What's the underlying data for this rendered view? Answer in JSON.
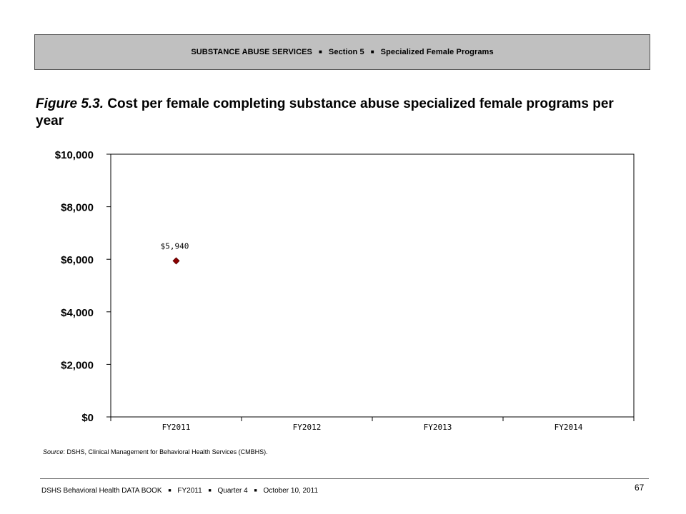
{
  "header": {
    "segment_1": "SUBSTANCE ABUSE SERVICES",
    "segment_2": "Section 5",
    "segment_3": "Specialized Female Programs",
    "separator": "■"
  },
  "figure": {
    "label": "Figure 5.3.",
    "title": "Cost per female completing substance abuse specialized female programs per year"
  },
  "chart_data": {
    "type": "scatter",
    "title": "",
    "xlabel": "",
    "ylabel": "",
    "categories": [
      "FY2011",
      "FY2012",
      "FY2013",
      "FY2014"
    ],
    "series": [
      {
        "values": [
          5940,
          null,
          null,
          null
        ],
        "data_labels": [
          "$5,940",
          "",
          "",
          ""
        ],
        "color": "#8b0000",
        "marker": "diamond"
      }
    ],
    "ylim": [
      0,
      10000
    ],
    "y_ticks": [
      0,
      2000,
      4000,
      6000,
      8000,
      10000
    ],
    "y_tick_labels": [
      "$0",
      "$2,000",
      "$4,000",
      "$6,000",
      "$8,000",
      "$10,000"
    ],
    "grid": false,
    "legend": "none"
  },
  "source": {
    "label": "Source",
    "text": ": DSHS, Clinical Management for Behavioral Health Services (CMBHS)."
  },
  "footer": {
    "segment_1": "DSHS Behavioral Health DATA BOOK",
    "segment_2": "FY2011",
    "segment_3": "Quarter 4",
    "segment_4": "October 10, 2011",
    "separator": "■",
    "page_number": "67"
  }
}
